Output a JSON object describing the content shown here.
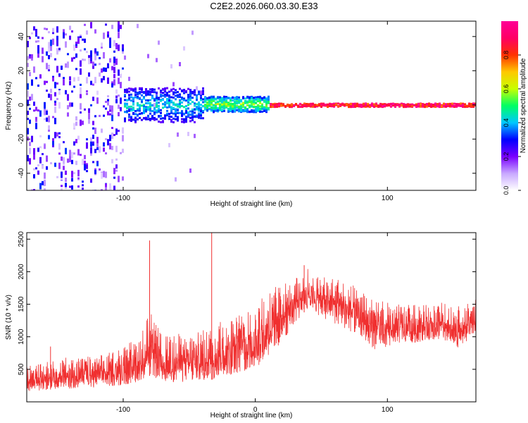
{
  "figure": {
    "title": "C2E2.2026.060.03.30.E33"
  },
  "chart_data": [
    {
      "type": "heatmap",
      "title": "C2E2.2026.060.03.30.E33",
      "xlabel": "Height of straight line (km)",
      "ylabel": "Frequency (Hz)",
      "xlim": [
        -173,
        167
      ],
      "ylim": [
        -50,
        49
      ],
      "x_ticks": [
        -100,
        0,
        100
      ],
      "x_tick_labels": [
        "-100",
        "",
        "100"
      ],
      "y_ticks": [
        -40,
        -20,
        0,
        20,
        40
      ],
      "y_tick_labels": [
        "-40",
        "-20",
        "0",
        "20",
        "40"
      ],
      "colorbar": {
        "label": "Normalized spectral amplitude",
        "range": [
          0,
          1
        ],
        "ticks": [
          0,
          0.2,
          0.4,
          0.6,
          0.8
        ],
        "tick_labels": [
          "0.0",
          "0.2",
          "0.4",
          "0.6",
          "0.8"
        ],
        "colors": [
          "#ffffff",
          "#c8a8ff",
          "#7a00ff",
          "#0000ff",
          "#00c8ff",
          "#00ff64",
          "#c8ff00",
          "#ffc800",
          "#ff3200",
          "#ff0064",
          "#ff0096"
        ]
      },
      "features": [
        {
          "x_range": [
            -173,
            -100
          ],
          "description_level": 0.3,
          "freq_spread": [
            -50,
            49
          ]
        },
        {
          "x_range": [
            -100,
            -40
          ],
          "description_level": 0.45,
          "freq_spread": [
            -10,
            10
          ]
        },
        {
          "x_range": [
            -40,
            10
          ],
          "description_level": 0.6,
          "freq_spread": [
            -4,
            5
          ]
        },
        {
          "x_range": [
            10,
            167
          ],
          "description_level": 0.95,
          "freq_spread": [
            -1,
            1
          ]
        }
      ]
    },
    {
      "type": "line",
      "xlabel": "Height of straight line (km)",
      "ylabel": "SNR (10 * v/v)",
      "xlim": [
        -173,
        167
      ],
      "ylim": [
        0,
        2600
      ],
      "x_ticks": [
        -100,
        0,
        100
      ],
      "x_tick_labels": [
        "-100",
        "0",
        "100"
      ],
      "y_ticks": [
        500,
        1000,
        1500,
        2000,
        2500
      ],
      "y_tick_labels": [
        "500",
        "1000",
        "1500",
        "2000",
        "2500"
      ],
      "color": "#f03030",
      "series": [
        {
          "envelope_x": [
            -173,
            -160,
            -150,
            -140,
            -120,
            -100,
            -90,
            -80,
            -70,
            -60,
            -50,
            -40,
            -30,
            -20,
            -10,
            0,
            10,
            20,
            30,
            40,
            50,
            60,
            70,
            80,
            90,
            100,
            110,
            120,
            130,
            140,
            150,
            160,
            167
          ],
          "envelope_upper": [
            550,
            600,
            650,
            700,
            700,
            850,
            1000,
            1400,
            1000,
            1050,
            1050,
            1100,
            1200,
            1300,
            1400,
            1500,
            1750,
            1800,
            1900,
            2050,
            1900,
            1950,
            1850,
            1700,
            1550,
            1550,
            1500,
            1500,
            1500,
            1550,
            1450,
            1500,
            1600
          ],
          "envelope_lower": [
            150,
            180,
            200,
            200,
            220,
            250,
            300,
            400,
            300,
            300,
            300,
            320,
            350,
            400,
            450,
            500,
            700,
            900,
            1200,
            1450,
            1300,
            1200,
            1100,
            1000,
            800,
            850,
            900,
            900,
            950,
            950,
            800,
            900,
            1100
          ],
          "spikes": [
            {
              "x": -80,
              "y": 2480
            },
            {
              "x": -33,
              "y": 2600
            },
            {
              "x": -155,
              "y": 850
            },
            {
              "x": 37,
              "y": 2100
            }
          ]
        }
      ]
    }
  ]
}
